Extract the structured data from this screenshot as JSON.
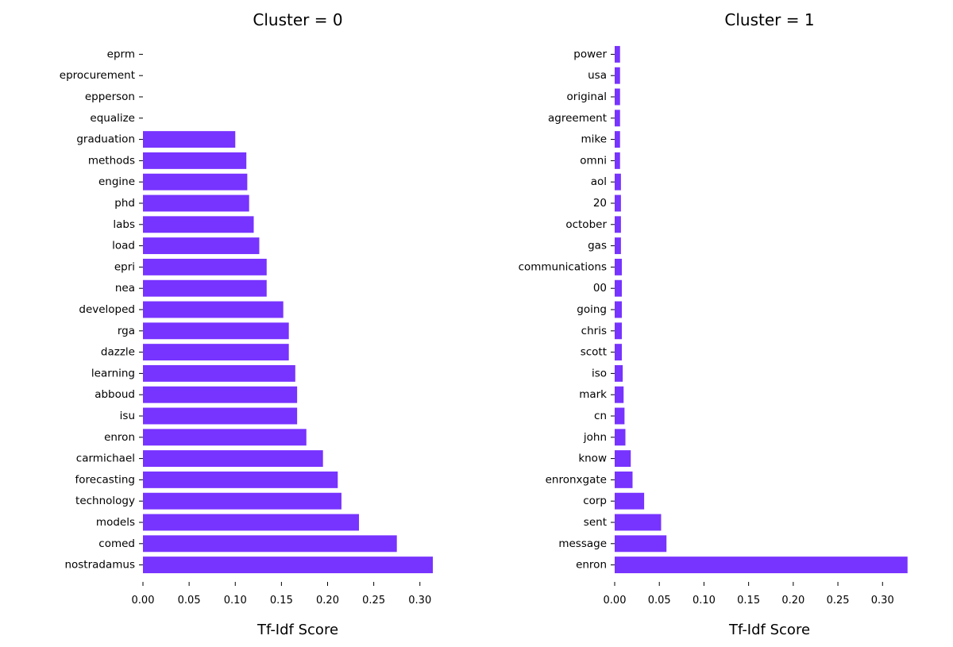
{
  "chart_data": [
    {
      "type": "bar",
      "orientation": "horizontal",
      "title": "Cluster = 0",
      "xlabel": "Tf-Idf Score",
      "ylabel": "",
      "xlim": [
        0,
        0.32
      ],
      "xticks": [
        "0.00",
        "0.05",
        "0.10",
        "0.15",
        "0.20",
        "0.25",
        "0.30"
      ],
      "bar_color": "#7733ff",
      "categories": [
        "eprm",
        "eprocurement",
        "epperson",
        "equalize",
        "graduation",
        "methods",
        "engine",
        "phd",
        "labs",
        "load",
        "epri",
        "nea",
        "developed",
        "rga",
        "dazzle",
        "learning",
        "abboud",
        "isu",
        "enron",
        "carmichael",
        "forecasting",
        "technology",
        "models",
        "comed",
        "nostradamus"
      ],
      "values": [
        0.0,
        0.0,
        0.0,
        0.0,
        0.1,
        0.112,
        0.113,
        0.115,
        0.12,
        0.126,
        0.134,
        0.134,
        0.152,
        0.158,
        0.158,
        0.165,
        0.167,
        0.167,
        0.177,
        0.195,
        0.211,
        0.215,
        0.234,
        0.275,
        0.314
      ]
    },
    {
      "type": "bar",
      "orientation": "horizontal",
      "title": "Cluster = 1",
      "xlabel": "Tf-Idf Score",
      "ylabel": "",
      "xlim": [
        0,
        0.33
      ],
      "xticks": [
        "0.00",
        "0.05",
        "0.10",
        "0.15",
        "0.20",
        "0.25",
        "0.30"
      ],
      "bar_color": "#7733ff",
      "categories": [
        "power",
        "usa",
        "original",
        "agreement",
        "mike",
        "omni",
        "aol",
        "20",
        "october",
        "gas",
        "communications",
        "00",
        "going",
        "chris",
        "scott",
        "iso",
        "mark",
        "cn",
        "john",
        "know",
        "enronxgate",
        "corp",
        "sent",
        "message",
        "enron"
      ],
      "values": [
        0.006,
        0.006,
        0.006,
        0.006,
        0.006,
        0.006,
        0.007,
        0.007,
        0.007,
        0.007,
        0.008,
        0.008,
        0.008,
        0.008,
        0.008,
        0.009,
        0.01,
        0.011,
        0.012,
        0.018,
        0.02,
        0.033,
        0.052,
        0.058,
        0.328
      ]
    }
  ]
}
